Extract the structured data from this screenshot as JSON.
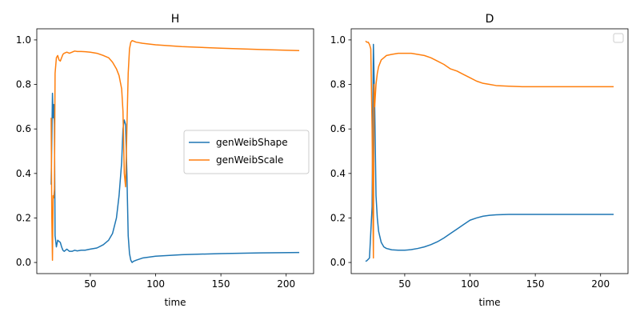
{
  "chart_data": [
    {
      "type": "line",
      "title": "H",
      "xlabel": "time",
      "ylabel": "",
      "xlim": [
        9,
        221
      ],
      "ylim": [
        -0.05,
        1.05
      ],
      "xticks": [
        50,
        100,
        150,
        200
      ],
      "yticks": [
        0.0,
        0.2,
        0.4,
        0.6,
        0.8,
        1.0
      ],
      "xtick_labels": [
        "50",
        "100",
        "150",
        "200"
      ],
      "ytick_labels": [
        "0.0",
        "0.2",
        "0.4",
        "0.6",
        "0.8",
        "1.0"
      ],
      "legend": {
        "placement": "center-right",
        "entries": [
          "genWeibShape",
          "genWeibScale"
        ]
      },
      "series": [
        {
          "name": "genWeibShape",
          "color": "#1f77b4",
          "x": [
            20,
            21,
            21.5,
            22,
            22.5,
            23,
            24,
            25,
            27,
            28,
            29,
            30,
            32,
            34,
            36,
            38,
            40,
            43,
            46,
            50,
            55,
            60,
            64,
            67,
            70,
            72,
            74,
            75,
            76,
            77,
            78,
            79,
            80,
            81,
            82,
            83,
            85,
            90,
            100,
            120,
            150,
            180,
            210
          ],
          "y": [
            0.35,
            0.76,
            0.65,
            0.71,
            0.62,
            0.12,
            0.07,
            0.1,
            0.09,
            0.07,
            0.055,
            0.05,
            0.06,
            0.05,
            0.05,
            0.055,
            0.052,
            0.055,
            0.055,
            0.06,
            0.065,
            0.08,
            0.1,
            0.13,
            0.2,
            0.3,
            0.45,
            0.6,
            0.64,
            0.62,
            0.4,
            0.12,
            0.04,
            0.01,
            0.0,
            0.005,
            0.01,
            0.02,
            0.028,
            0.035,
            0.04,
            0.043,
            0.045
          ]
        },
        {
          "name": "genWeibScale",
          "color": "#ff7f0e",
          "x": [
            20,
            20.5,
            21,
            21.5,
            22,
            22.5,
            23,
            24,
            25,
            26,
            27,
            28,
            29,
            30,
            32,
            34,
            36,
            38,
            40,
            43,
            46,
            50,
            55,
            60,
            64,
            67,
            70,
            72,
            74,
            75,
            76,
            77,
            78,
            79,
            80,
            81,
            82,
            83,
            85,
            90,
            100,
            120,
            150,
            180,
            210
          ],
          "y": [
            0.65,
            0.2,
            0.01,
            0.3,
            0.29,
            0.33,
            0.85,
            0.92,
            0.93,
            0.91,
            0.905,
            0.92,
            0.935,
            0.94,
            0.945,
            0.94,
            0.945,
            0.95,
            0.948,
            0.948,
            0.947,
            0.945,
            0.94,
            0.93,
            0.92,
            0.9,
            0.87,
            0.84,
            0.78,
            0.68,
            0.4,
            0.34,
            0.6,
            0.85,
            0.96,
            0.99,
            0.997,
            0.995,
            0.99,
            0.985,
            0.978,
            0.97,
            0.963,
            0.957,
            0.952
          ]
        }
      ]
    },
    {
      "type": "line",
      "title": "D",
      "xlabel": "time",
      "ylabel": "",
      "xlim": [
        9,
        221
      ],
      "ylim": [
        -0.05,
        1.05
      ],
      "xticks": [
        50,
        100,
        150,
        200
      ],
      "yticks": [
        0.0,
        0.2,
        0.4,
        0.6,
        0.8,
        1.0
      ],
      "xtick_labels": [
        "50",
        "100",
        "150",
        "200"
      ],
      "ytick_labels": [
        "0.0",
        "0.2",
        "0.4",
        "0.6",
        "0.8",
        "1.0"
      ],
      "legend": {
        "placement": "top-right",
        "entries": []
      },
      "series": [
        {
          "name": "",
          "color": "#1f77b4",
          "x": [
            20,
            21,
            23,
            25,
            26,
            27,
            28,
            29,
            30,
            32,
            34,
            36,
            38,
            40,
            45,
            50,
            55,
            60,
            65,
            70,
            75,
            80,
            85,
            90,
            95,
            100,
            105,
            110,
            115,
            120,
            125,
            130,
            140,
            150,
            160,
            180,
            210
          ],
          "y": [
            0.005,
            0.008,
            0.02,
            0.25,
            0.98,
            0.7,
            0.3,
            0.2,
            0.14,
            0.09,
            0.07,
            0.063,
            0.06,
            0.057,
            0.055,
            0.055,
            0.058,
            0.063,
            0.07,
            0.08,
            0.093,
            0.11,
            0.13,
            0.15,
            0.17,
            0.19,
            0.2,
            0.208,
            0.212,
            0.214,
            0.215,
            0.216,
            0.216,
            0.216,
            0.216,
            0.216,
            0.216
          ]
        },
        {
          "name": "",
          "color": "#ff7f0e",
          "x": [
            20,
            21,
            22,
            23,
            24,
            25,
            26,
            26.5,
            27,
            28,
            29,
            30,
            32,
            34,
            36,
            40,
            45,
            50,
            55,
            60,
            65,
            70,
            75,
            80,
            85,
            90,
            95,
            100,
            105,
            110,
            115,
            120,
            130,
            140,
            150,
            160,
            180,
            210
          ],
          "y": [
            0.995,
            0.99,
            0.99,
            0.98,
            0.96,
            0.6,
            0.02,
            0.8,
            0.7,
            0.8,
            0.85,
            0.88,
            0.91,
            0.92,
            0.93,
            0.935,
            0.94,
            0.94,
            0.94,
            0.935,
            0.93,
            0.92,
            0.905,
            0.89,
            0.87,
            0.86,
            0.845,
            0.83,
            0.815,
            0.805,
            0.8,
            0.795,
            0.792,
            0.79,
            0.79,
            0.79,
            0.79,
            0.79
          ]
        }
      ]
    }
  ]
}
